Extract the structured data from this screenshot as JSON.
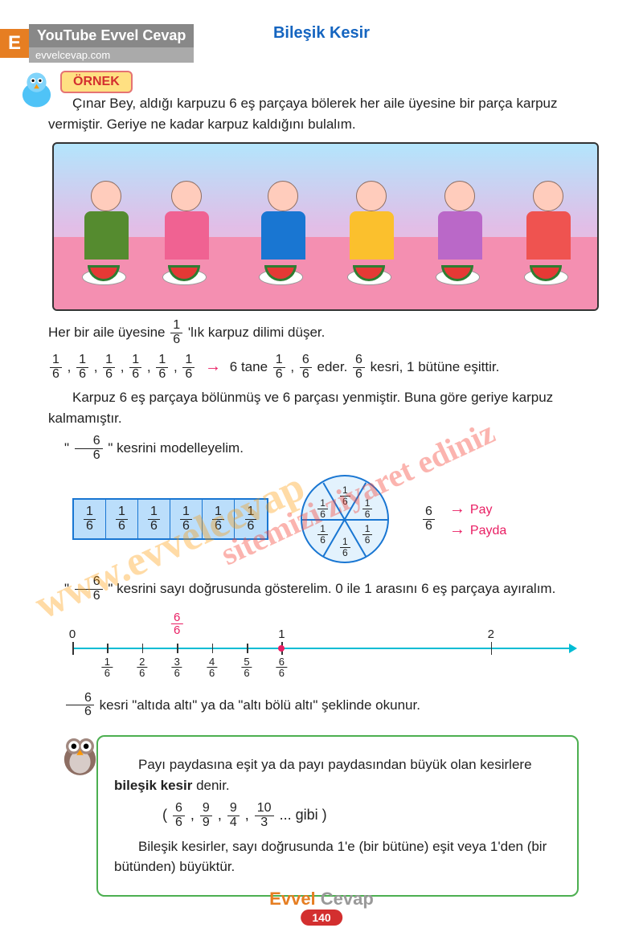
{
  "header": {
    "e_badge": "E",
    "youtube": "YouTube Evvel Cevap",
    "site": "evvelcevap.com"
  },
  "title": "Bileşik Kesir",
  "ornek": "ÖRNEK",
  "intro": "Çınar Bey, aldığı karpuzu 6 eş parçaya bölerek her aile üyesine bir parça karpuz vermiştir. Geriye ne kadar karpuz kaldığını bulalım.",
  "illustration": {
    "people_count": 6,
    "shirt_colors": [
      "#558b2f",
      "#f06292",
      "#1976d2",
      "#fbc02d",
      "#ba68c8",
      "#ef5350"
    ],
    "bg_top": "#b3e5fc",
    "bg_bottom": "#f8bbd0",
    "table": "#f48fb1"
  },
  "line1_pre": "Her bir aile üyesine ",
  "line1_post": " 'lık karpuz dilimi düşer.",
  "fractions_list": [
    "1",
    "1",
    "1",
    "1",
    "1",
    "1"
  ],
  "frac_denom": "6",
  "six_tane": "6 tane ",
  "eder": " eder. ",
  "kesri_butun": " kesri, 1 bütüne eşittir.",
  "line3": "Karpuz 6 eş parçaya bölünmüş ve 6 parçası yenmiştir. Buna göre geriye karpuz kalmamıştır.",
  "model_intro_pre": "\" ",
  "model_intro_post": " \" kesrini modelleyelim.",
  "rect_cells": [
    "1",
    "1",
    "1",
    "1",
    "1",
    "1"
  ],
  "pie_labels": [
    "1",
    "1",
    "1",
    "1",
    "1",
    "1"
  ],
  "pay": "Pay",
  "payda": "Payda",
  "numline_intro_pre": "\" ",
  "numline_intro_post": " \" kesrini sayı doğrusunda gösterelim. 0 ile 1 arasını 6 eş parçaya ayıralım.",
  "numline": {
    "top_fraction_n": "6",
    "top_fraction_d": "6",
    "marks": [
      "0",
      "1",
      "2"
    ],
    "ticks_n": [
      "1",
      "2",
      "3",
      "4",
      "5",
      "6"
    ],
    "ticks_d": "6",
    "mark_positions": [
      0,
      42,
      84
    ],
    "tick_positions": [
      7,
      14,
      21,
      28,
      35,
      42
    ]
  },
  "read_line_pre": "",
  "read_line_post": " kesri \"altıda altı\" ya da \"altı bölü altı\" şeklinde okunur.",
  "info1_pre": "Payı paydasına eşit ya da payı paydasından büyük olan kesirlere ",
  "info1_bold": "bileşik kesir",
  "info1_post": " denir.",
  "info_examples": [
    {
      "n": "6",
      "d": "6"
    },
    {
      "n": "9",
      "d": "9"
    },
    {
      "n": "9",
      "d": "4"
    },
    {
      "n": "10",
      "d": "3"
    }
  ],
  "info_gibi": " ... gibi",
  "info2": "Bileşik kesirler, sayı doğrusunda 1'e (bir bütüne) eşit veya 1'den (bir bütünden) büyüktür.",
  "footer": {
    "brand1": "Evvel",
    "brand2": " Cevap",
    "page": "140"
  },
  "watermarks": {
    "w1": "www.evvelcevap",
    "w2": "sitemizi ziyaret ediniz"
  },
  "colors": {
    "title": "#1565c0",
    "accent": "#e91e63",
    "blue": "#1976d2",
    "cyan": "#00bcd4",
    "green": "#4caf50",
    "orange": "#e67e22",
    "red": "#d32f2f"
  }
}
